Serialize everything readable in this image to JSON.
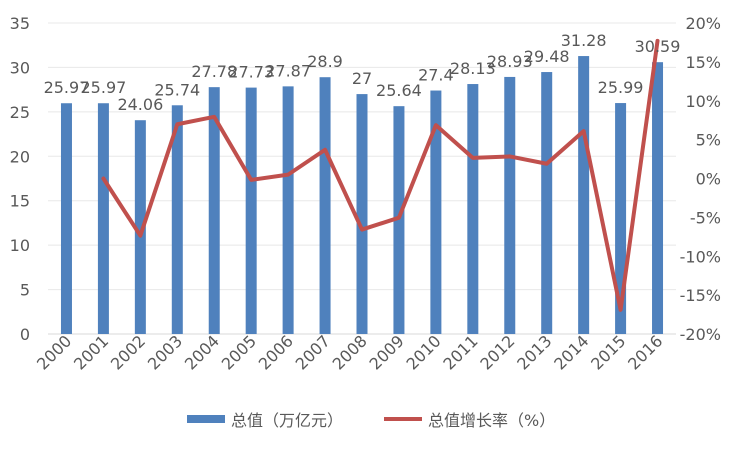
{
  "chart_data": {
    "type": "bar+line",
    "categories": [
      "2000",
      "2001",
      "2002",
      "2003",
      "2004",
      "2005",
      "2006",
      "2007",
      "2008",
      "2009",
      "2010",
      "2011",
      "2012",
      "2013",
      "2014",
      "2015",
      "2016"
    ],
    "series": [
      {
        "name": "总值（万亿元）",
        "type": "bar",
        "axis": "left",
        "color": "#4f81bd",
        "values": [
          25.97,
          25.97,
          24.06,
          25.74,
          27.78,
          27.73,
          27.87,
          28.9,
          27,
          25.64,
          27.4,
          28.13,
          28.93,
          29.48,
          31.28,
          25.99,
          30.59
        ],
        "labels": [
          "25.97",
          "25.97",
          "24.06",
          "25.74",
          "27.78",
          "27.73",
          "27.87",
          "28.9",
          "27",
          "25.64",
          "27.4",
          "28.13",
          "28.93",
          "29.48",
          "31.28",
          "25.99",
          "30.59"
        ]
      },
      {
        "name": "总值增长率（%）",
        "type": "line",
        "axis": "right",
        "color": "#c0504d",
        "values": [
          null,
          0.0,
          -7.35,
          6.98,
          7.93,
          -0.18,
          0.5,
          3.7,
          -6.57,
          -5.04,
          6.86,
          2.66,
          2.84,
          1.9,
          6.1,
          -16.9,
          17.7
        ]
      }
    ],
    "y_left": {
      "ylim": [
        0,
        35
      ],
      "ticks": [
        "0",
        "5",
        "10",
        "15",
        "20",
        "25",
        "30",
        "35"
      ]
    },
    "y_right": {
      "ylim": [
        -20,
        20
      ],
      "ticks": [
        "-20%",
        "-15%",
        "-10%",
        "-5%",
        "0%",
        "5%",
        "10%",
        "15%",
        "20%"
      ]
    },
    "grid": true,
    "legend_placement": "bottom"
  }
}
